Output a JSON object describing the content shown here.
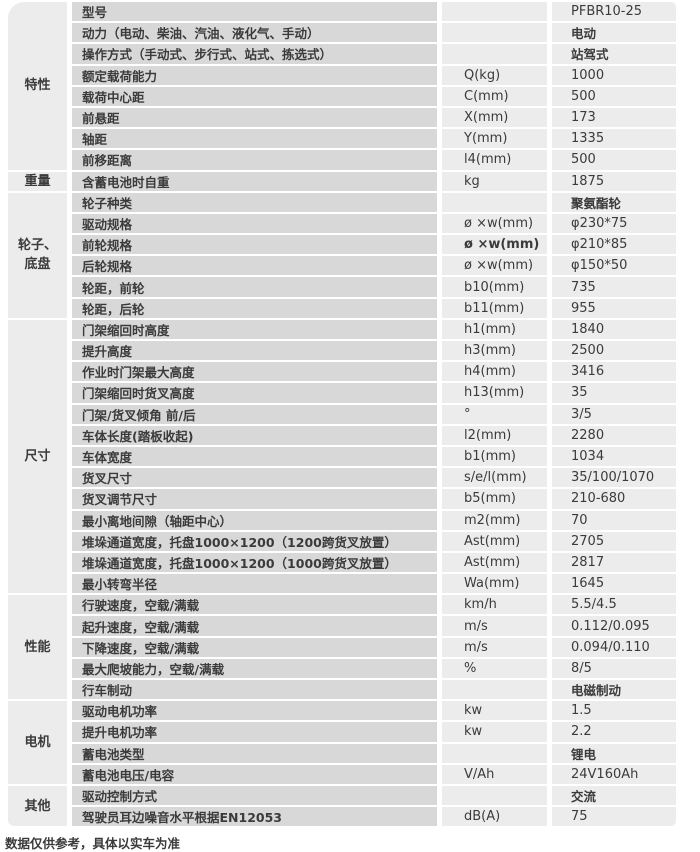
{
  "colors": {
    "cell_dark": "#d8d8d8",
    "cell_light": "#ececec",
    "text": "#3b3b3b",
    "background": "#ffffff"
  },
  "table": {
    "groups": [
      {
        "category": "特性",
        "rows": [
          {
            "name": "型号",
            "unit": "",
            "value": "PFBR10-25"
          },
          {
            "name": "动力（电动、柴油、汽油、液化气、手动）",
            "unit": "",
            "value": "电动"
          },
          {
            "name": "操作方式（手动式、步行式、站式、拣选式）",
            "unit": "",
            "value": "站驾式"
          },
          {
            "name": "额定载荷能力",
            "unit": "Q(kg)",
            "value": "1000"
          },
          {
            "name": "载荷中心距",
            "unit": "C(mm)",
            "value": "500"
          },
          {
            "name": "前悬距",
            "unit": "X(mm)",
            "value": "173"
          },
          {
            "name": "轴距",
            "unit": "Y(mm)",
            "value": "1335"
          },
          {
            "name": "前移距离",
            "unit": "l4(mm)",
            "value": "500"
          }
        ]
      },
      {
        "category": "重量",
        "rows": [
          {
            "name": "含蓄电池时自重",
            "unit": "kg",
            "value": "1875"
          }
        ]
      },
      {
        "category": "轮子、底盘",
        "rows": [
          {
            "name": "轮子种类",
            "unit": "",
            "value": "聚氨酯轮"
          },
          {
            "name": "驱动规格",
            "unit": "ø ×w(mm)",
            "value": "φ230*75"
          },
          {
            "name": "前轮规格",
            "unit": "ø ×w(mm)",
            "value": "φ210*85"
          },
          {
            "name": "后轮规格",
            "unit": "ø ×w(mm)",
            "value": "φ150*50"
          },
          {
            "name": "轮距，前轮",
            "unit": "b10(mm)",
            "value": "735"
          },
          {
            "name": "轮距，后轮",
            "unit": "b11(mm)",
            "value": "955"
          }
        ]
      },
      {
        "category": "尺寸",
        "rows": [
          {
            "name": "门架缩回时高度",
            "unit": "h1(mm)",
            "value": "1840"
          },
          {
            "name": "提升高度",
            "unit": "h3(mm)",
            "value": "2500"
          },
          {
            "name": "作业时门架最大高度",
            "unit": "h4(mm)",
            "value": "3416"
          },
          {
            "name": "门架缩回时货叉高度",
            "unit": "h13(mm)",
            "value": "35"
          },
          {
            "name": "门架/货叉倾角 前/后",
            "unit": "°",
            "value": "3/5"
          },
          {
            "name": "车体长度(踏板收起)",
            "unit": "l2(mm)",
            "value": "2280"
          },
          {
            "name": "车体宽度",
            "unit": "b1(mm)",
            "value": "1034"
          },
          {
            "name": "货叉尺寸",
            "unit": "s/e/l(mm)",
            "value": "35/100/1070"
          },
          {
            "name": "货叉调节尺寸",
            "unit": "b5(mm)",
            "value": "210-680"
          },
          {
            "name": "最小离地间隙（轴距中心）",
            "unit": "m2(mm)",
            "value": "70"
          },
          {
            "name": "堆垛通道宽度，托盘1000×1200（1200跨货叉放置）",
            "unit": "Ast(mm)",
            "value": "2705"
          },
          {
            "name": "堆垛通道宽度，托盘1000×1200（1000跨货叉放置）",
            "unit": "Ast(mm)",
            "value": "2817"
          },
          {
            "name": "最小转弯半径",
            "unit": "Wa(mm)",
            "value": "1645"
          }
        ]
      },
      {
        "category": "性能",
        "rows": [
          {
            "name": "行驶速度，空载/满载",
            "unit": "km/h",
            "value": "5.5/4.5"
          },
          {
            "name": "起升速度，空载/满载",
            "unit": "m/s",
            "value": "0.112/0.095"
          },
          {
            "name": "下降速度，空载/满载",
            "unit": "m/s",
            "value": "0.094/0.110"
          },
          {
            "name": "最大爬坡能力，空载/满载",
            "unit": "%",
            "value": "8/5"
          },
          {
            "name": "行车制动",
            "unit": "",
            "value": "电磁制动"
          }
        ]
      },
      {
        "category": "电机",
        "rows": [
          {
            "name": "驱动电机功率",
            "unit": "kw",
            "value": "1.5"
          },
          {
            "name": "提升电机功率",
            "unit": "kw",
            "value": "2.2"
          },
          {
            "name": "蓄电池类型",
            "unit": "",
            "value": "锂电"
          },
          {
            "name": "蓄电池电压/电容",
            "unit": "V/Ah",
            "value": "24V160Ah"
          }
        ]
      },
      {
        "category": "其他",
        "rows": [
          {
            "name": "驱动控制方式",
            "unit": "",
            "value": "交流"
          },
          {
            "name": "驾驶员耳边噪音水平根据EN12053",
            "unit": "dB(A)",
            "value": "75"
          }
        ]
      }
    ]
  },
  "footer": {
    "note": "数据仅供参考，具体以实车为准"
  }
}
